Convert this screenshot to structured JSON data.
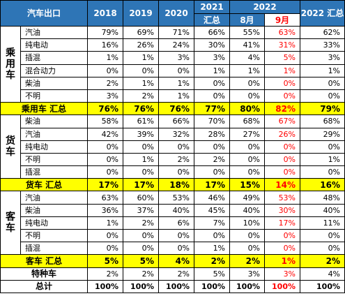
{
  "header": {
    "label": "汽车出口",
    "y2018": "2018",
    "y2019": "2019",
    "y2020": "2020",
    "y2021a": "2021",
    "y2021b": "汇总",
    "y2022": "2022",
    "aug": "8月",
    "sep": "9月",
    "y2022sum": "2022 汇总"
  },
  "groups": {
    "passenger": "乘用车",
    "truck": "货车",
    "bus": "客车"
  },
  "rows": {
    "p1": {
      "name": "汽油",
      "v2018": "79%",
      "v2019": "69%",
      "v2020": "71%",
      "v2021": "66%",
      "aug": "55%",
      "sep": "63%",
      "sum": "62%"
    },
    "p2": {
      "name": "纯电动",
      "v2018": "16%",
      "v2019": "26%",
      "v2020": "24%",
      "v2021": "30%",
      "aug": "41%",
      "sep": "31%",
      "sum": "33%"
    },
    "p3": {
      "name": "插混",
      "v2018": "1%",
      "v2019": "1%",
      "v2020": "3%",
      "v2021": "3%",
      "aug": "4%",
      "sep": "5%",
      "sum": "3%"
    },
    "p4": {
      "name": "混合动力",
      "v2018": "0%",
      "v2019": "0%",
      "v2020": "0%",
      "v2021": "1%",
      "aug": "1%",
      "sep": "1%",
      "sum": "1%"
    },
    "p5": {
      "name": "柴油",
      "v2018": "2%",
      "v2019": "1%",
      "v2020": "1%",
      "v2021": "0%",
      "aug": "0%",
      "sep": "0%",
      "sum": "0%"
    },
    "p6": {
      "name": "不明",
      "v2018": "3%",
      "v2019": "2%",
      "v2020": "1%",
      "v2021": "0%",
      "aug": "0%",
      "sep": "0%",
      "sum": "0%"
    },
    "ptotal": {
      "name": "乘用车 汇总",
      "v2018": "76%",
      "v2019": "76%",
      "v2020": "76%",
      "v2021": "77%",
      "aug": "80%",
      "sep": "82%",
      "sum": "79%"
    },
    "t1": {
      "name": "柴油",
      "v2018": "58%",
      "v2019": "61%",
      "v2020": "66%",
      "v2021": "70%",
      "aug": "68%",
      "sep": "67%",
      "sum": "68%"
    },
    "t2": {
      "name": "汽油",
      "v2018": "42%",
      "v2019": "39%",
      "v2020": "32%",
      "v2021": "28%",
      "aug": "27%",
      "sep": "26%",
      "sum": "29%"
    },
    "t3": {
      "name": "纯电动",
      "v2018": "0%",
      "v2019": "0%",
      "v2020": "0%",
      "v2021": "0%",
      "aug": "0%",
      "sep": "0%",
      "sum": "0%"
    },
    "t4": {
      "name": "不明",
      "v2018": "0%",
      "v2019": "1%",
      "v2020": "2%",
      "v2021": "2%",
      "aug": "0%",
      "sep": "0%",
      "sum": "1%"
    },
    "t5": {
      "name": "插混",
      "v2018": "0%",
      "v2019": "0%",
      "v2020": "0%",
      "v2021": "0%",
      "aug": "0%",
      "sep": "0%",
      "sum": "0%"
    },
    "ttotal": {
      "name": "货车 汇总",
      "v2018": "17%",
      "v2019": "17%",
      "v2020": "18%",
      "v2021": "17%",
      "aug": "15%",
      "sep": "14%",
      "sum": "16%"
    },
    "b1": {
      "name": "汽油",
      "v2018": "63%",
      "v2019": "60%",
      "v2020": "53%",
      "v2021": "46%",
      "aug": "49%",
      "sep": "53%",
      "sum": "48%"
    },
    "b2": {
      "name": "柴油",
      "v2018": "36%",
      "v2019": "37%",
      "v2020": "40%",
      "v2021": "45%",
      "aug": "40%",
      "sep": "30%",
      "sum": "40%"
    },
    "b3": {
      "name": "纯电动",
      "v2018": "1%",
      "v2019": "2%",
      "v2020": "6%",
      "v2021": "7%",
      "aug": "10%",
      "sep": "17%",
      "sum": "11%"
    },
    "b4": {
      "name": "不明",
      "v2018": "0%",
      "v2019": "0%",
      "v2020": "0%",
      "v2021": "0%",
      "aug": "0%",
      "sep": "0%",
      "sum": "0%"
    },
    "b5": {
      "name": "插混",
      "v2018": "0%",
      "v2019": "0%",
      "v2020": "0%",
      "v2021": "1%",
      "aug": "0%",
      "sep": "0%",
      "sum": "0%"
    },
    "btotal": {
      "name": "客车 汇总",
      "v2018": "5%",
      "v2019": "5%",
      "v2020": "4%",
      "v2021": "2%",
      "aug": "2%",
      "sep": "1%",
      "sum": "2%"
    },
    "special": {
      "name": "特种车",
      "v2018": "2%",
      "v2019": "2%",
      "v2020": "2%",
      "v2021": "5%",
      "aug": "3%",
      "sep": "3%",
      "sum": "4%"
    },
    "grand": {
      "name": "总计",
      "v2018": "100%",
      "v2019": "100%",
      "v2020": "100%",
      "v2021": "100%",
      "aug": "100%",
      "sep": "100%",
      "sum": "100%"
    }
  },
  "colors": {
    "header_bg": "#2e75b6",
    "total_bg": "#ffff00",
    "highlight_text": "#ff0000"
  }
}
